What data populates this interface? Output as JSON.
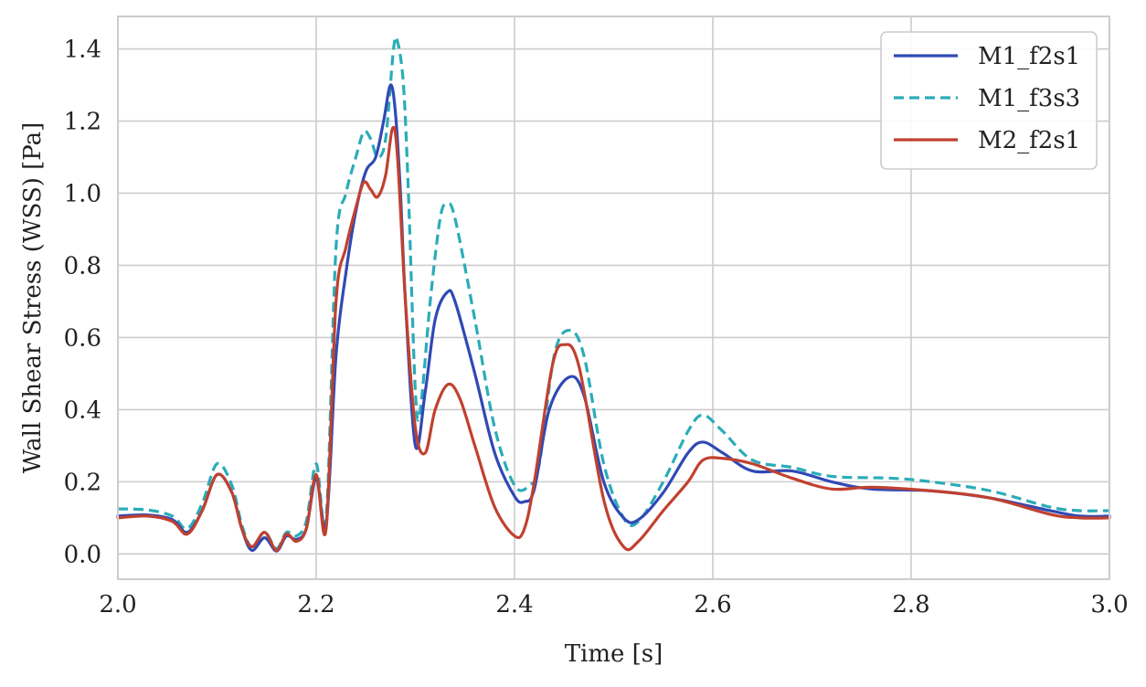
{
  "chart_data": {
    "type": "line",
    "xlabel": "Time [s]",
    "ylabel": "Wall Shear Stress (WSS) [Pa]",
    "xlim": [
      2.0,
      3.0
    ],
    "ylim": [
      -0.07,
      1.49
    ],
    "xticks": [
      2.0,
      2.2,
      2.4,
      2.6,
      2.8,
      3.0
    ],
    "xtick_labels": [
      "2.0",
      "2.2",
      "2.4",
      "2.6",
      "2.8",
      "3.0"
    ],
    "yticks": [
      0.0,
      0.2,
      0.4,
      0.6,
      0.8,
      1.0,
      1.2,
      1.4
    ],
    "ytick_labels": [
      "0.0",
      "0.2",
      "0.4",
      "0.6",
      "0.8",
      "1.0",
      "1.2",
      "1.4"
    ],
    "grid": true,
    "legend": "top-right",
    "series": [
      {
        "name": "M1_f2s1",
        "color": "#3049b5",
        "dash": "solid",
        "points": [
          [
            2.0,
            0.105
          ],
          [
            2.03,
            0.108
          ],
          [
            2.055,
            0.095
          ],
          [
            2.07,
            0.06
          ],
          [
            2.085,
            0.12
          ],
          [
            2.1,
            0.22
          ],
          [
            2.115,
            0.17
          ],
          [
            2.125,
            0.07
          ],
          [
            2.135,
            0.01
          ],
          [
            2.148,
            0.045
          ],
          [
            2.16,
            0.008
          ],
          [
            2.17,
            0.05
          ],
          [
            2.18,
            0.04
          ],
          [
            2.19,
            0.07
          ],
          [
            2.2,
            0.21
          ],
          [
            2.21,
            0.08
          ],
          [
            2.22,
            0.55
          ],
          [
            2.23,
            0.78
          ],
          [
            2.24,
            0.95
          ],
          [
            2.25,
            1.06
          ],
          [
            2.26,
            1.1
          ],
          [
            2.268,
            1.2
          ],
          [
            2.275,
            1.3
          ],
          [
            2.28,
            1.22
          ],
          [
            2.285,
            1.0
          ],
          [
            2.29,
            0.7
          ],
          [
            2.3,
            0.3
          ],
          [
            2.31,
            0.45
          ],
          [
            2.32,
            0.65
          ],
          [
            2.332,
            0.725
          ],
          [
            2.34,
            0.7
          ],
          [
            2.36,
            0.5
          ],
          [
            2.38,
            0.28
          ],
          [
            2.4,
            0.16
          ],
          [
            2.41,
            0.145
          ],
          [
            2.42,
            0.18
          ],
          [
            2.435,
            0.4
          ],
          [
            2.455,
            0.49
          ],
          [
            2.47,
            0.44
          ],
          [
            2.49,
            0.2
          ],
          [
            2.51,
            0.1
          ],
          [
            2.525,
            0.095
          ],
          [
            2.55,
            0.17
          ],
          [
            2.575,
            0.28
          ],
          [
            2.59,
            0.31
          ],
          [
            2.61,
            0.28
          ],
          [
            2.64,
            0.23
          ],
          [
            2.68,
            0.23
          ],
          [
            2.72,
            0.2
          ],
          [
            2.76,
            0.18
          ],
          [
            2.82,
            0.175
          ],
          [
            2.88,
            0.155
          ],
          [
            2.94,
            0.12
          ],
          [
            2.97,
            0.105
          ],
          [
            3.0,
            0.105
          ]
        ]
      },
      {
        "name": "M1_f3s3",
        "color": "#2aacb8",
        "dash": "dashed",
        "points": [
          [
            2.0,
            0.125
          ],
          [
            2.03,
            0.122
          ],
          [
            2.055,
            0.105
          ],
          [
            2.07,
            0.07
          ],
          [
            2.085,
            0.14
          ],
          [
            2.1,
            0.25
          ],
          [
            2.115,
            0.19
          ],
          [
            2.125,
            0.08
          ],
          [
            2.135,
            0.02
          ],
          [
            2.148,
            0.06
          ],
          [
            2.16,
            0.015
          ],
          [
            2.17,
            0.06
          ],
          [
            2.18,
            0.05
          ],
          [
            2.19,
            0.09
          ],
          [
            2.2,
            0.25
          ],
          [
            2.21,
            0.1
          ],
          [
            2.22,
            0.85
          ],
          [
            2.23,
            1.0
          ],
          [
            2.24,
            1.1
          ],
          [
            2.248,
            1.17
          ],
          [
            2.255,
            1.15
          ],
          [
            2.262,
            1.1
          ],
          [
            2.27,
            1.15
          ],
          [
            2.278,
            1.4
          ],
          [
            2.282,
            1.42
          ],
          [
            2.288,
            1.3
          ],
          [
            2.293,
            1.0
          ],
          [
            2.3,
            0.45
          ],
          [
            2.305,
            0.4
          ],
          [
            2.315,
            0.7
          ],
          [
            2.325,
            0.93
          ],
          [
            2.332,
            0.97
          ],
          [
            2.34,
            0.93
          ],
          [
            2.36,
            0.65
          ],
          [
            2.38,
            0.35
          ],
          [
            2.4,
            0.19
          ],
          [
            2.415,
            0.19
          ],
          [
            2.425,
            0.25
          ],
          [
            2.44,
            0.55
          ],
          [
            2.455,
            0.62
          ],
          [
            2.47,
            0.55
          ],
          [
            2.49,
            0.25
          ],
          [
            2.51,
            0.1
          ],
          [
            2.525,
            0.09
          ],
          [
            2.55,
            0.2
          ],
          [
            2.575,
            0.34
          ],
          [
            2.59,
            0.385
          ],
          [
            2.61,
            0.34
          ],
          [
            2.64,
            0.26
          ],
          [
            2.68,
            0.24
          ],
          [
            2.72,
            0.215
          ],
          [
            2.78,
            0.21
          ],
          [
            2.82,
            0.2
          ],
          [
            2.88,
            0.175
          ],
          [
            2.94,
            0.13
          ],
          [
            2.97,
            0.12
          ],
          [
            3.0,
            0.12
          ]
        ]
      },
      {
        "name": "M2_f2s1",
        "color": "#c0412f",
        "dash": "solid",
        "points": [
          [
            2.0,
            0.1
          ],
          [
            2.03,
            0.105
          ],
          [
            2.055,
            0.09
          ],
          [
            2.07,
            0.055
          ],
          [
            2.085,
            0.12
          ],
          [
            2.1,
            0.22
          ],
          [
            2.115,
            0.17
          ],
          [
            2.125,
            0.07
          ],
          [
            2.135,
            0.02
          ],
          [
            2.148,
            0.06
          ],
          [
            2.16,
            0.01
          ],
          [
            2.17,
            0.055
          ],
          [
            2.18,
            0.035
          ],
          [
            2.19,
            0.07
          ],
          [
            2.2,
            0.22
          ],
          [
            2.21,
            0.07
          ],
          [
            2.22,
            0.7
          ],
          [
            2.23,
            0.85
          ],
          [
            2.24,
            0.96
          ],
          [
            2.248,
            1.03
          ],
          [
            2.255,
            1.01
          ],
          [
            2.262,
            0.99
          ],
          [
            2.27,
            1.05
          ],
          [
            2.277,
            1.18
          ],
          [
            2.282,
            1.1
          ],
          [
            2.29,
            0.7
          ],
          [
            2.3,
            0.35
          ],
          [
            2.31,
            0.28
          ],
          [
            2.32,
            0.4
          ],
          [
            2.333,
            0.47
          ],
          [
            2.345,
            0.43
          ],
          [
            2.36,
            0.3
          ],
          [
            2.38,
            0.13
          ],
          [
            2.4,
            0.05
          ],
          [
            2.41,
            0.07
          ],
          [
            2.42,
            0.2
          ],
          [
            2.438,
            0.52
          ],
          [
            2.45,
            0.58
          ],
          [
            2.465,
            0.52
          ],
          [
            2.49,
            0.15
          ],
          [
            2.51,
            0.02
          ],
          [
            2.525,
            0.035
          ],
          [
            2.55,
            0.12
          ],
          [
            2.575,
            0.2
          ],
          [
            2.59,
            0.26
          ],
          [
            2.61,
            0.265
          ],
          [
            2.64,
            0.25
          ],
          [
            2.68,
            0.21
          ],
          [
            2.72,
            0.18
          ],
          [
            2.76,
            0.185
          ],
          [
            2.82,
            0.175
          ],
          [
            2.88,
            0.155
          ],
          [
            2.94,
            0.11
          ],
          [
            2.97,
            0.1
          ],
          [
            3.0,
            0.1
          ]
        ]
      }
    ]
  }
}
